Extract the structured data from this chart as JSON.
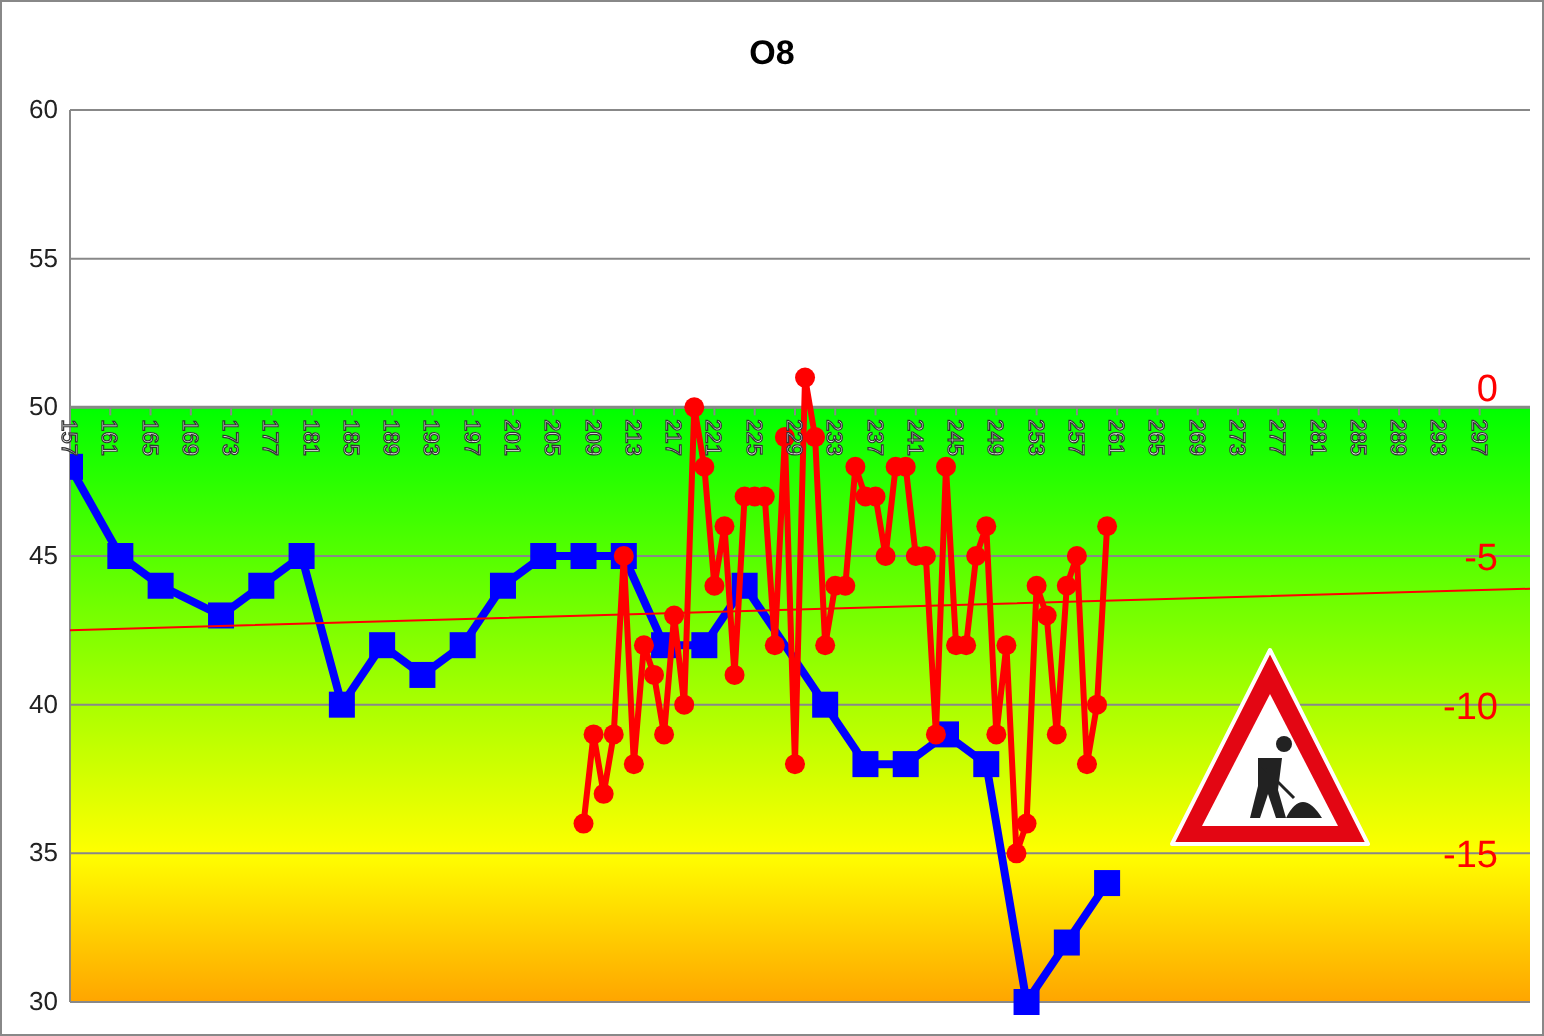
{
  "chart_data": {
    "type": "line",
    "title": "O8",
    "xlim": [
      157,
      302
    ],
    "xticks": [
      157,
      161,
      165,
      169,
      173,
      177,
      181,
      185,
      189,
      193,
      197,
      201,
      205,
      209,
      213,
      217,
      221,
      225,
      229,
      233,
      237,
      241,
      245,
      249,
      253,
      257,
      261,
      265,
      269,
      273,
      277,
      281,
      285,
      289,
      293,
      297
    ],
    "ylim": [
      30,
      60
    ],
    "yticks": [
      30,
      35,
      40,
      45,
      50,
      55,
      60
    ],
    "y2lim": [
      -20,
      10
    ],
    "y2ticks": [
      0,
      -5,
      -10,
      -15
    ],
    "grid": "y",
    "bands": [
      {
        "axis": "y",
        "from": 30,
        "to": 50,
        "color": "#00ff00"
      }
    ],
    "series": [
      {
        "color": "#0000ff",
        "marker": "square",
        "x": [
          157,
          162,
          166,
          172,
          176,
          180,
          184,
          188,
          192,
          196,
          200,
          204,
          208,
          212,
          216,
          220,
          224,
          232,
          236,
          240,
          244,
          248,
          252,
          256,
          260
        ],
        "values": [
          48,
          45,
          44,
          43,
          44,
          45,
          40,
          42,
          41,
          42,
          44,
          45,
          45,
          45,
          42,
          42,
          44,
          40,
          38,
          38,
          39,
          38,
          30,
          32,
          34
        ]
      },
      {
        "color": "#ff0000",
        "marker": "circle",
        "axis": "y2",
        "x": [
          208,
          209,
          210,
          211,
          212,
          213,
          214,
          215,
          216,
          217,
          218,
          219,
          220,
          221,
          222,
          223,
          224,
          225,
          226,
          227,
          228,
          229,
          230,
          231,
          232,
          233,
          234,
          235,
          236,
          237,
          238,
          239,
          240,
          241,
          242,
          243,
          244,
          245,
          246,
          247,
          248,
          249,
          250,
          251,
          252,
          253,
          254,
          255,
          256,
          257,
          258,
          259,
          260
        ],
        "values": [
          -14,
          -11,
          -13,
          -11,
          -5,
          -12,
          -8,
          -9,
          -11,
          -7,
          -10,
          0,
          -2,
          -6,
          -4,
          -9,
          -3,
          -3,
          -3,
          -8,
          -1,
          -12,
          1,
          -1,
          -8,
          -6,
          -6,
          -2,
          -3,
          -3,
          -5,
          -2,
          -2,
          -5,
          -5,
          -11,
          -2,
          -8,
          -8,
          -5,
          -4,
          -11,
          -8,
          -15,
          -14,
          -6,
          -7,
          -11,
          -6,
          -5,
          -12,
          -10,
          -4
        ]
      },
      {
        "color": "#ff0000",
        "marker": "none",
        "axis": "y2",
        "x": [
          157,
          302
        ],
        "values": [
          -7.5,
          -6.1
        ]
      }
    ]
  }
}
